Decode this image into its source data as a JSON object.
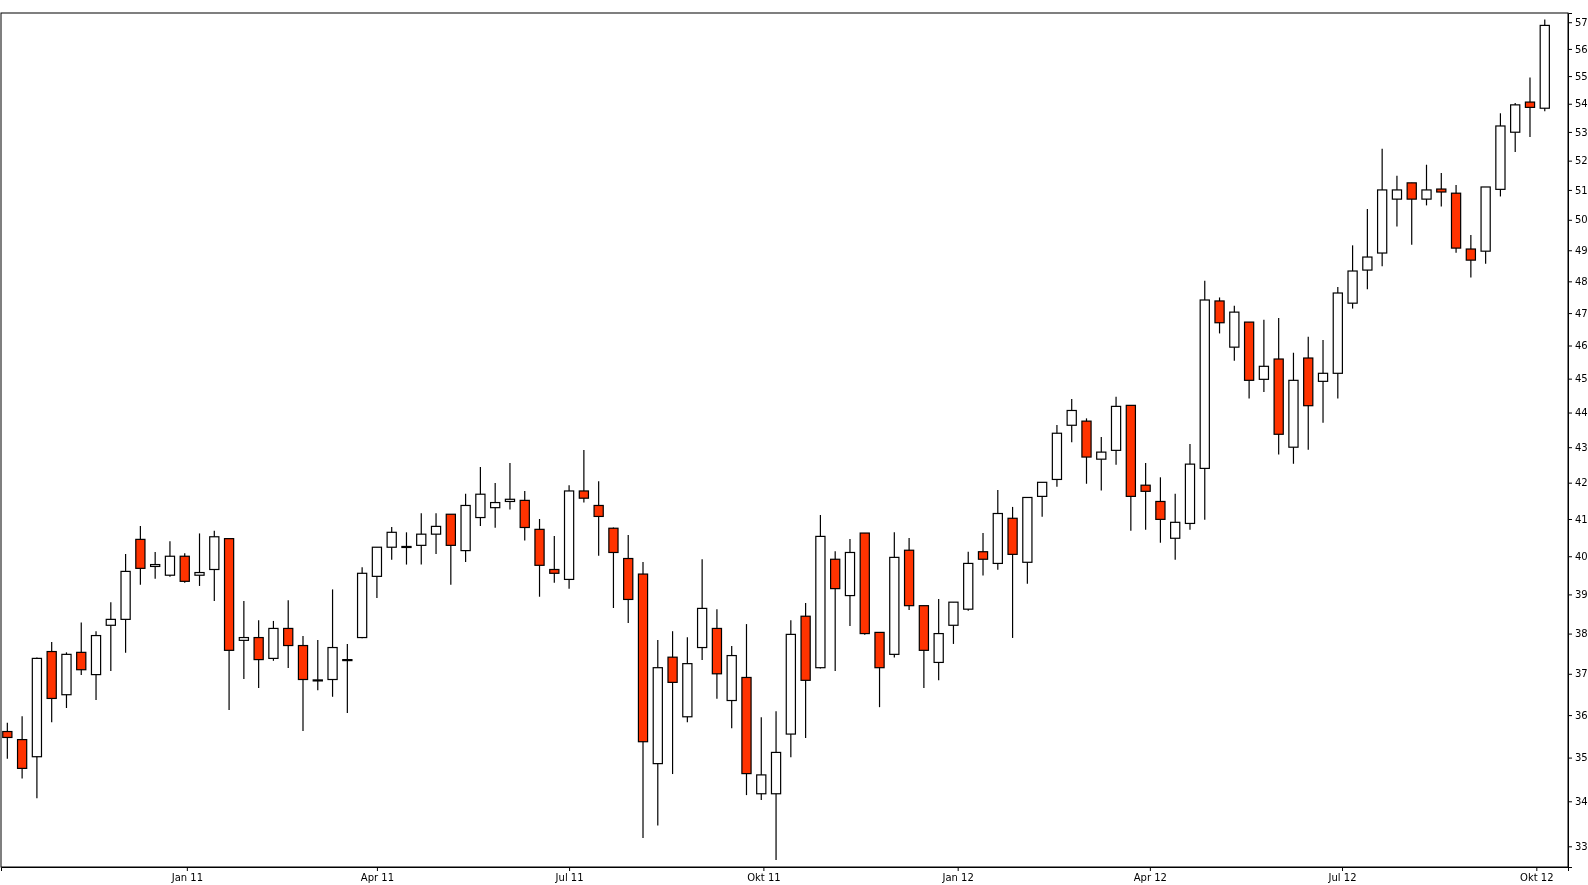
{
  "chart_data": {
    "type": "candlestick",
    "x": [
      "2010-10-08",
      "2010-10-15",
      "2010-10-22",
      "2010-10-29",
      "2010-11-05",
      "2010-11-12",
      "2010-11-19",
      "2010-11-26",
      "2010-12-03",
      "2010-12-10",
      "2010-12-17",
      "2010-12-24",
      "2010-12-31",
      "2011-01-07",
      "2011-01-14",
      "2011-01-21",
      "2011-01-28",
      "2011-02-04",
      "2011-02-11",
      "2011-02-18",
      "2011-02-25",
      "2011-03-04",
      "2011-03-11",
      "2011-03-18",
      "2011-03-25",
      "2011-04-01",
      "2011-04-08",
      "2011-04-15",
      "2011-04-22",
      "2011-04-29",
      "2011-05-06",
      "2011-05-13",
      "2011-05-20",
      "2011-05-27",
      "2011-06-03",
      "2011-06-10",
      "2011-06-17",
      "2011-06-24",
      "2011-07-01",
      "2011-07-08",
      "2011-07-15",
      "2011-07-22",
      "2011-07-29",
      "2011-08-05",
      "2011-08-12",
      "2011-08-19",
      "2011-08-26",
      "2011-09-02",
      "2011-09-09",
      "2011-09-16",
      "2011-09-23",
      "2011-09-30",
      "2011-10-07",
      "2011-10-14",
      "2011-10-21",
      "2011-10-28",
      "2011-11-04",
      "2011-11-11",
      "2011-11-18",
      "2011-11-25",
      "2011-12-02",
      "2011-12-09",
      "2011-12-16",
      "2011-12-23",
      "2011-12-30",
      "2012-01-06",
      "2012-01-13",
      "2012-01-20",
      "2012-01-27",
      "2012-02-03",
      "2012-02-10",
      "2012-02-17",
      "2012-02-24",
      "2012-03-02",
      "2012-03-09",
      "2012-03-16",
      "2012-03-23",
      "2012-03-30",
      "2012-04-06",
      "2012-04-13",
      "2012-04-20",
      "2012-04-27",
      "2012-05-04",
      "2012-05-11",
      "2012-05-18",
      "2012-05-25",
      "2012-06-01",
      "2012-06-08",
      "2012-06-15",
      "2012-06-22",
      "2012-06-29",
      "2012-07-06",
      "2012-07-13",
      "2012-07-20",
      "2012-07-27",
      "2012-08-03",
      "2012-08-10",
      "2012-08-17",
      "2012-08-24",
      "2012-08-31",
      "2012-09-07",
      "2012-09-14",
      "2012-09-21",
      "2012-09-28",
      "2012-10-05"
    ],
    "ohlc": [
      [
        35.61,
        35.82,
        34.97,
        35.47
      ],
      [
        35.42,
        35.97,
        34.52,
        34.75
      ],
      [
        35.02,
        37.4,
        34.07,
        37.38
      ],
      [
        37.55,
        37.79,
        35.83,
        36.4
      ],
      [
        36.49,
        37.53,
        36.17,
        37.48
      ],
      [
        37.53,
        38.28,
        36.97,
        37.1
      ],
      [
        36.98,
        38.06,
        36.36,
        37.95
      ],
      [
        38.21,
        38.8,
        37.07,
        38.36
      ],
      [
        38.36,
        40.06,
        37.52,
        39.6
      ],
      [
        40.45,
        40.81,
        39.25,
        39.68
      ],
      [
        39.73,
        40.11,
        39.41,
        39.78
      ],
      [
        39.5,
        40.4,
        39.46,
        40.0
      ],
      [
        40.0,
        40.08,
        39.3,
        39.34
      ],
      [
        39.5,
        40.61,
        39.22,
        39.57
      ],
      [
        39.65,
        40.68,
        38.83,
        40.52
      ],
      [
        40.47,
        40.47,
        36.12,
        37.58
      ],
      [
        37.83,
        38.83,
        36.87,
        37.9
      ],
      [
        37.9,
        38.34,
        36.65,
        37.35
      ],
      [
        37.38,
        38.32,
        37.32,
        38.13
      ],
      [
        38.13,
        38.85,
        37.14,
        37.7
      ],
      [
        37.7,
        37.94,
        35.62,
        36.86
      ],
      [
        36.84,
        37.84,
        36.6,
        36.85
      ],
      [
        36.86,
        39.13,
        36.44,
        37.65
      ],
      [
        37.35,
        37.74,
        36.05,
        37.34
      ],
      [
        37.9,
        39.71,
        37.88,
        39.55
      ],
      [
        39.47,
        40.24,
        38.91,
        40.24
      ],
      [
        40.24,
        40.78,
        39.91,
        40.64
      ],
      [
        40.24,
        40.64,
        39.78,
        40.26
      ],
      [
        40.29,
        41.16,
        39.78,
        40.59
      ],
      [
        40.59,
        41.16,
        40.06,
        40.8
      ],
      [
        41.13,
        41.13,
        39.25,
        40.29
      ],
      [
        40.15,
        41.69,
        39.85,
        41.37
      ],
      [
        41.04,
        42.44,
        40.81,
        41.68
      ],
      [
        41.31,
        41.99,
        40.76,
        41.45
      ],
      [
        41.48,
        42.55,
        41.26,
        41.54
      ],
      [
        41.51,
        41.77,
        40.42,
        40.77
      ],
      [
        40.72,
        41.0,
        38.94,
        39.76
      ],
      [
        39.65,
        40.54,
        39.3,
        39.55
      ],
      [
        39.39,
        41.93,
        39.15,
        41.77
      ],
      [
        41.77,
        42.92,
        41.45,
        41.57
      ],
      [
        41.37,
        42.04,
        40.01,
        41.07
      ],
      [
        40.75,
        40.77,
        38.65,
        40.1
      ],
      [
        39.94,
        40.57,
        38.27,
        38.87
      ],
      [
        39.53,
        39.85,
        33.18,
        35.37
      ],
      [
        34.86,
        37.84,
        33.46,
        37.15
      ],
      [
        37.41,
        38.06,
        34.62,
        36.79
      ],
      [
        35.96,
        37.91,
        35.83,
        37.25
      ],
      [
        37.65,
        39.92,
        37.34,
        38.64
      ],
      [
        38.13,
        38.62,
        36.39,
        37.0
      ],
      [
        36.35,
        37.69,
        35.69,
        37.45
      ],
      [
        36.91,
        38.24,
        34.14,
        34.63
      ],
      [
        34.17,
        35.95,
        34.03,
        34.6
      ],
      [
        34.17,
        36.09,
        32.7,
        35.12
      ],
      [
        35.55,
        38.34,
        35.01,
        37.98
      ],
      [
        38.44,
        38.78,
        35.46,
        36.84
      ],
      [
        37.15,
        41.11,
        37.13,
        40.53
      ],
      [
        39.92,
        40.13,
        37.07,
        39.15
      ],
      [
        38.97,
        40.46,
        38.19,
        40.1
      ],
      [
        40.62,
        40.62,
        37.97,
        38.0
      ],
      [
        38.03,
        38.03,
        36.19,
        37.15
      ],
      [
        37.48,
        40.64,
        37.4,
        39.97
      ],
      [
        40.16,
        40.49,
        38.6,
        38.71
      ],
      [
        38.71,
        38.71,
        36.65,
        37.58
      ],
      [
        37.28,
        38.88,
        36.84,
        38.0
      ],
      [
        38.21,
        38.8,
        37.74,
        38.8
      ],
      [
        38.62,
        40.12,
        38.58,
        39.81
      ],
      [
        40.12,
        40.62,
        39.49,
        39.92
      ],
      [
        39.81,
        41.8,
        39.64,
        41.15
      ],
      [
        41.02,
        41.33,
        37.89,
        40.05
      ],
      [
        39.84,
        41.59,
        39.28,
        41.59
      ],
      [
        41.62,
        42.01,
        41.06,
        42.01
      ],
      [
        42.09,
        43.64,
        41.89,
        43.4
      ],
      [
        43.63,
        44.4,
        43.14,
        44.06
      ],
      [
        43.75,
        43.83,
        41.97,
        42.72
      ],
      [
        42.66,
        43.29,
        41.78,
        42.86
      ],
      [
        42.91,
        44.46,
        42.5,
        44.18
      ],
      [
        44.21,
        44.21,
        40.68,
        41.62
      ],
      [
        41.93,
        42.55,
        40.71,
        41.76
      ],
      [
        41.48,
        42.15,
        40.36,
        40.99
      ],
      [
        40.48,
        41.69,
        39.91,
        40.91
      ],
      [
        40.88,
        43.09,
        40.71,
        42.52
      ],
      [
        42.4,
        48.02,
        40.98,
        47.41
      ],
      [
        47.38,
        47.49,
        46.37,
        46.7
      ],
      [
        45.95,
        47.23,
        45.54,
        47.03
      ],
      [
        46.72,
        46.72,
        44.41,
        44.95
      ],
      [
        44.98,
        46.79,
        44.6,
        45.37
      ],
      [
        45.59,
        46.85,
        42.79,
        43.37
      ],
      [
        43.0,
        45.78,
        42.53,
        44.95
      ],
      [
        45.62,
        46.27,
        42.93,
        44.2
      ],
      [
        44.92,
        46.17,
        43.7,
        45.16
      ],
      [
        45.16,
        47.82,
        44.41,
        47.63
      ],
      [
        47.31,
        49.16,
        47.14,
        48.33
      ],
      [
        48.36,
        50.36,
        47.75,
        48.78
      ],
      [
        48.91,
        52.41,
        48.48,
        51.0
      ],
      [
        50.69,
        51.48,
        49.78,
        51.0
      ],
      [
        51.24,
        51.24,
        49.18,
        50.69
      ],
      [
        50.69,
        51.86,
        50.48,
        51.0
      ],
      [
        51.03,
        51.58,
        50.44,
        50.93
      ],
      [
        50.89,
        51.17,
        48.92,
        49.07
      ],
      [
        49.04,
        49.5,
        48.12,
        48.68
      ],
      [
        48.97,
        51.1,
        48.56,
        51.1
      ],
      [
        51.02,
        53.66,
        50.78,
        53.21
      ],
      [
        52.99,
        54.03,
        52.3,
        53.96
      ],
      [
        54.06,
        54.95,
        52.82,
        53.87
      ],
      [
        53.84,
        57.1,
        53.73,
        56.88
      ]
    ],
    "colors": [
      "#ff3300",
      "#ff3300",
      "#ffffff",
      "#ff3300",
      "#ffffff",
      "#ff3300",
      "#ffffff",
      "#ffffff",
      "#ffffff",
      "#ff3300",
      "#ffffff",
      "#ffffff",
      "#ff3300",
      "#ffffff",
      "#ffffff",
      "#ff3300",
      "#ffffff",
      "#ff3300",
      "#ffffff",
      "#ff3300",
      "#ff3300",
      "#ffffff",
      "#ffffff",
      "#ff3300",
      "#ffffff",
      "#ffffff",
      "#ffffff",
      "#ffffff",
      "#ffffff",
      "#ffffff",
      "#ff3300",
      "#ffffff",
      "#ffffff",
      "#ffffff",
      "#ffffff",
      "#ff3300",
      "#ff3300",
      "#ff3300",
      "#ffffff",
      "#ff3300",
      "#ff3300",
      "#ff3300",
      "#ff3300",
      "#ff3300",
      "#ffffff",
      "#ff3300",
      "#ffffff",
      "#ffffff",
      "#ff3300",
      "#ffffff",
      "#ff3300",
      "#ffffff",
      "#ffffff",
      "#ffffff",
      "#ff3300",
      "#ffffff",
      "#ff3300",
      "#ffffff",
      "#ff3300",
      "#ff3300",
      "#ffffff",
      "#ff3300",
      "#ff3300",
      "#ffffff",
      "#ffffff",
      "#ffffff",
      "#ff3300",
      "#ffffff",
      "#ff3300",
      "#ffffff",
      "#ffffff",
      "#ffffff",
      "#ffffff",
      "#ff3300",
      "#ffffff",
      "#ffffff",
      "#ff3300",
      "#ff3300",
      "#ff3300",
      "#ffffff",
      "#ffffff",
      "#ffffff",
      "#ff3300",
      "#ffffff",
      "#ff3300",
      "#ffffff",
      "#ff3300",
      "#ffffff",
      "#ff3300",
      "#ffffff",
      "#ffffff",
      "#ffffff",
      "#ffffff",
      "#ffffff",
      "#ffffff",
      "#ff3300",
      "#ffffff",
      "#ff3300",
      "#ff3300",
      "#ff3300",
      "#ffffff",
      "#ffffff",
      "#ffffff",
      "#ff3300",
      "#ffffff"
    ],
    "xlim": [
      "2010-10-05",
      "2012-10-16"
    ],
    "xticks": [
      {
        "value": "2011-01-01",
        "label": "Jan 11"
      },
      {
        "value": "2011-04-01",
        "label": "Apr 11"
      },
      {
        "value": "2011-07-01",
        "label": "Jul 11"
      },
      {
        "value": "2011-10-01",
        "label": "Okt 11"
      },
      {
        "value": "2012-01-01",
        "label": "Jan 12"
      },
      {
        "value": "2012-04-01",
        "label": "Apr 12"
      },
      {
        "value": "2012-07-01",
        "label": "Jul 12"
      },
      {
        "value": "2012-10-01",
        "label": "Okt 12"
      }
    ],
    "ylim": [
      32.55,
      57.35
    ],
    "yticks": [
      33,
      34,
      35,
      36,
      37,
      38,
      39,
      40,
      41,
      42,
      43,
      44,
      45,
      46,
      47,
      48,
      49,
      50,
      51,
      52,
      53,
      54,
      55,
      56,
      57
    ],
    "log": "y",
    "grid": false
  }
}
